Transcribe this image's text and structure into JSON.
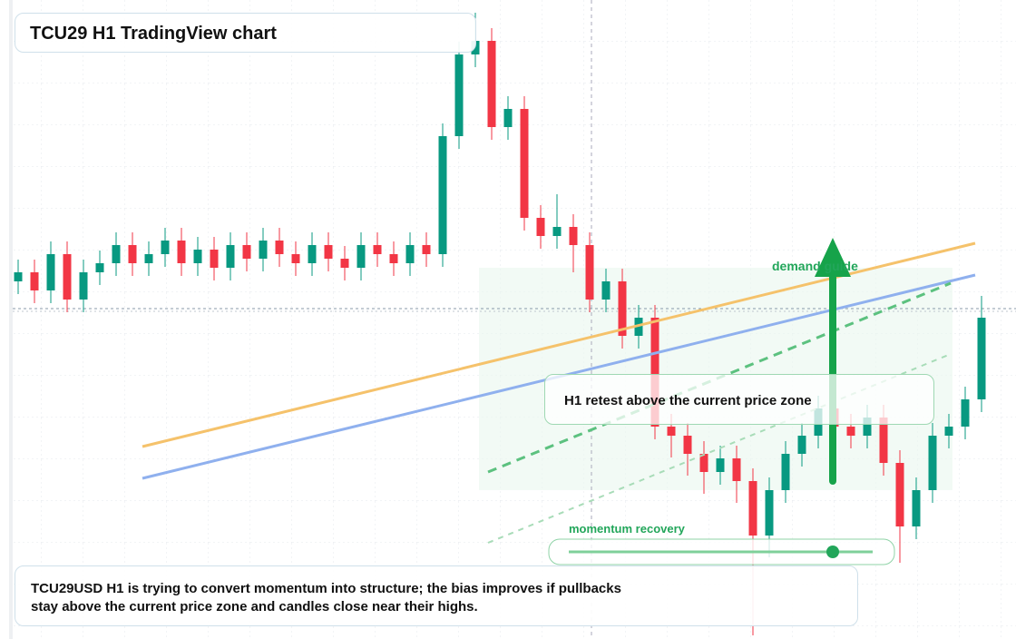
{
  "chart_data": {
    "type": "candlestick",
    "title": "TCU29 H1 TradingView chart",
    "open": [
      394,
      404,
      384,
      424,
      374,
      404,
      414,
      434,
      414,
      424,
      439,
      414,
      429,
      409,
      434,
      419,
      439,
      424,
      414,
      434,
      419,
      409,
      434,
      424,
      414,
      434,
      424,
      554,
      644,
      659,
      564,
      584,
      464,
      444,
      454,
      434,
      374,
      394,
      334,
      354,
      234,
      224,
      204,
      184,
      199,
      174,
      114,
      164,
      204,
      224,
      254,
      234,
      224,
      244,
      194,
      124,
      164,
      224,
      234,
      264
    ],
    "high": [
      418,
      418,
      438,
      438,
      418,
      428,
      448,
      448,
      438,
      453,
      453,
      443,
      443,
      448,
      448,
      453,
      453,
      438,
      448,
      448,
      433,
      448,
      448,
      438,
      448,
      448,
      568,
      658,
      690,
      673,
      598,
      598,
      478,
      490,
      468,
      448,
      408,
      408,
      368,
      368,
      248,
      238,
      218,
      213,
      213,
      188,
      178,
      218,
      238,
      268,
      268,
      248,
      258,
      258,
      208,
      178,
      238,
      248,
      278,
      378
    ],
    "low": [
      380,
      370,
      370,
      360,
      360,
      390,
      400,
      400,
      400,
      410,
      400,
      400,
      395,
      395,
      405,
      405,
      410,
      400,
      400,
      405,
      395,
      395,
      410,
      400,
      400,
      410,
      410,
      540,
      630,
      550,
      550,
      450,
      430,
      430,
      404,
      360,
      360,
      320,
      320,
      220,
      200,
      180,
      160,
      170,
      150,
      4,
      90,
      150,
      190,
      210,
      220,
      210,
      210,
      180,
      84,
      110,
      150,
      210,
      220,
      250
    ],
    "close": [
      404,
      384,
      424,
      374,
      404,
      414,
      434,
      414,
      424,
      439,
      414,
      429,
      409,
      434,
      419,
      439,
      424,
      414,
      434,
      419,
      409,
      434,
      424,
      414,
      434,
      424,
      554,
      644,
      659,
      564,
      584,
      464,
      444,
      454,
      434,
      374,
      394,
      334,
      354,
      234,
      224,
      204,
      184,
      199,
      174,
      114,
      164,
      204,
      224,
      254,
      234,
      224,
      244,
      194,
      124,
      164,
      224,
      234,
      264,
      354
    ],
    "ylim": [
      0,
      704
    ],
    "up_color": "#089981",
    "down_color": "#f23645",
    "annotations": {
      "demand": "demand guide",
      "retest": "H1 retest above the current price zone",
      "momentum": "momentum recovery"
    },
    "note": "TCU29USD H1 is trying to convert momentum into structure; the bias improves if pullbacks stay above the current price zone and candles close near their highs."
  }
}
